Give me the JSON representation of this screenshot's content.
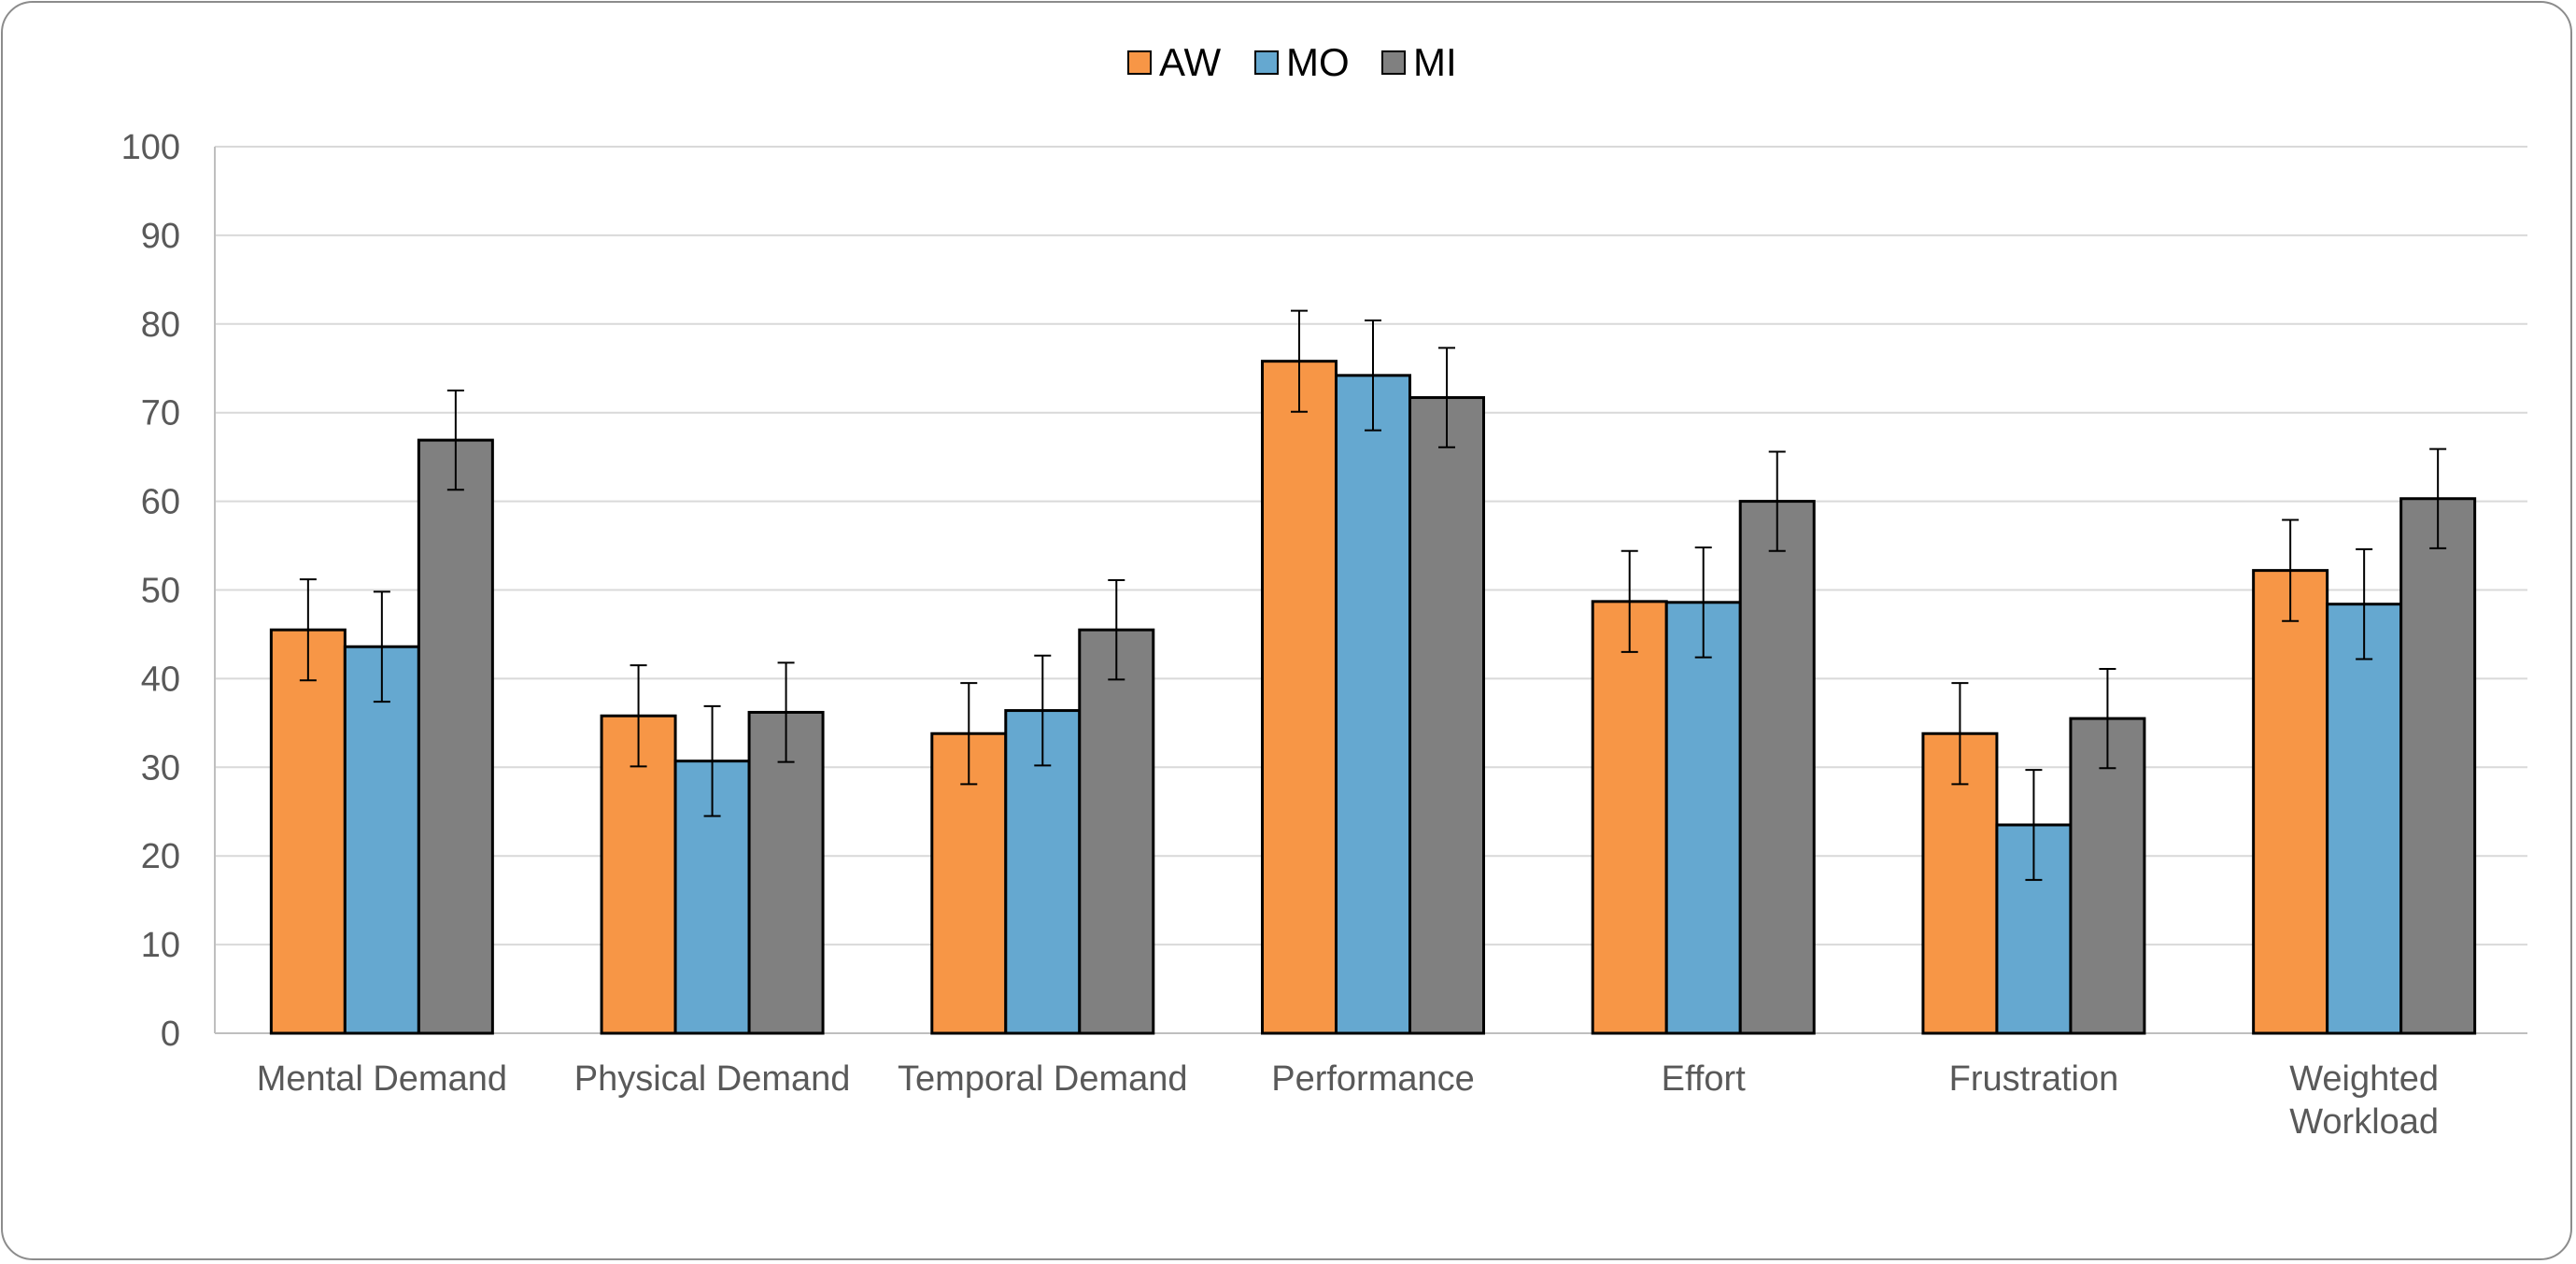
{
  "chart_data": {
    "type": "bar",
    "title": "",
    "xlabel": "",
    "ylabel": "",
    "ylim": [
      0,
      100
    ],
    "yticks": [
      "0",
      "10",
      "20",
      "30",
      "40",
      "50",
      "60",
      "70",
      "80",
      "90",
      "100"
    ],
    "grid": true,
    "legend_position": "top-center",
    "categories": [
      [
        "Mental Demand"
      ],
      [
        "Physical Demand"
      ],
      [
        "Temporal Demand"
      ],
      [
        "Performance"
      ],
      [
        "Effort"
      ],
      [
        "Frustration"
      ],
      [
        "Weighted",
        "Workload"
      ]
    ],
    "series": [
      {
        "name": "AW",
        "color": "#f79646",
        "values": [
          45.5,
          35.8,
          33.8,
          75.8,
          48.7,
          33.8,
          52.2
        ],
        "error": [
          5.7,
          5.7,
          5.7,
          5.7,
          5.7,
          5.7,
          5.7
        ]
      },
      {
        "name": "MO",
        "color": "#65a8d0",
        "values": [
          43.6,
          30.7,
          36.4,
          74.2,
          48.6,
          23.5,
          48.4
        ],
        "error": [
          6.2,
          6.2,
          6.2,
          6.2,
          6.2,
          6.2,
          6.2
        ]
      },
      {
        "name": "MI",
        "color": "#808080",
        "values": [
          66.9,
          36.2,
          45.5,
          71.7,
          60.0,
          35.5,
          60.3
        ],
        "error": [
          5.6,
          5.6,
          5.6,
          5.6,
          5.6,
          5.6,
          5.6
        ]
      }
    ]
  }
}
